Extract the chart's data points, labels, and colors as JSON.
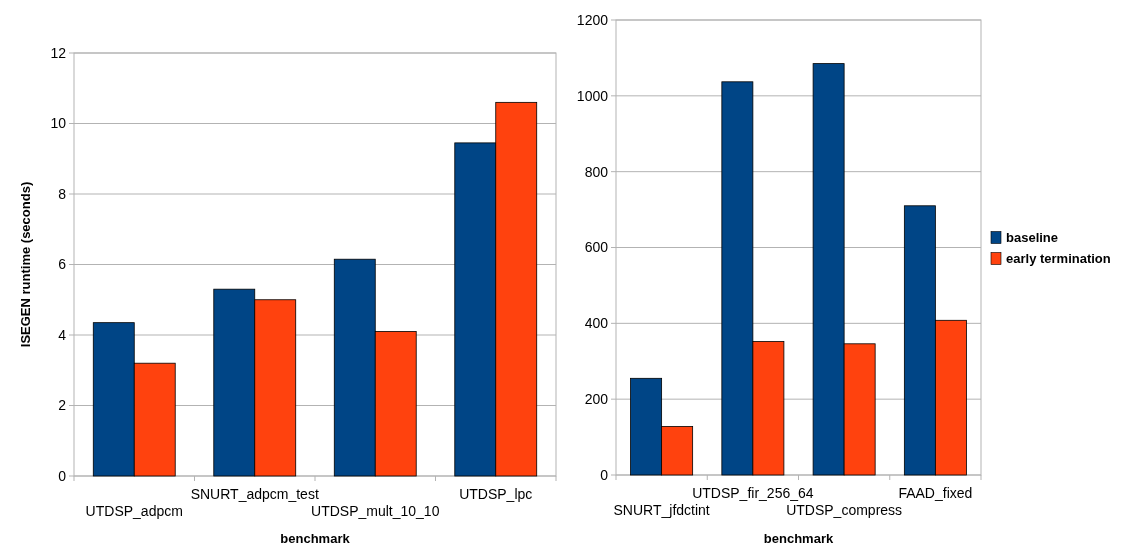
{
  "chart_data": [
    {
      "type": "bar",
      "xlabel": "benchmark",
      "ylabel": "ISEGEN runtime (seconds)",
      "categories": [
        "UTDSP_adpcm",
        "SNURT_adpcm_test",
        "UTDSP_mult_10_10",
        "UTDSP_lpc"
      ],
      "series": [
        {
          "color": "#004586",
          "values": [
            4.35,
            5.3,
            6.15,
            9.45
          ]
        },
        {
          "color": "#ff420e",
          "values": [
            3.2,
            5.0,
            4.1,
            10.6
          ]
        }
      ],
      "ylim": [
        0,
        12
      ],
      "yticks": [
        0,
        2,
        4,
        6,
        8,
        10,
        12
      ],
      "grid": "y"
    },
    {
      "type": "bar",
      "xlabel": "benchmark",
      "categories": [
        "SNURT_jfdctint",
        "UTDSP_fir_256_64",
        "UTDSP_compress",
        "FAAD_fixed"
      ],
      "series": [
        {
          "name": "baseline",
          "color": "#004586",
          "values": [
            255,
            1037,
            1085,
            710
          ]
        },
        {
          "name": "early termination",
          "color": "#ff420e",
          "values": [
            128,
            352,
            346,
            408
          ]
        }
      ],
      "ylim": [
        0,
        1200
      ],
      "yticks": [
        0,
        200,
        400,
        600,
        800,
        1000,
        1200
      ],
      "grid": "y",
      "legend": "right"
    }
  ]
}
